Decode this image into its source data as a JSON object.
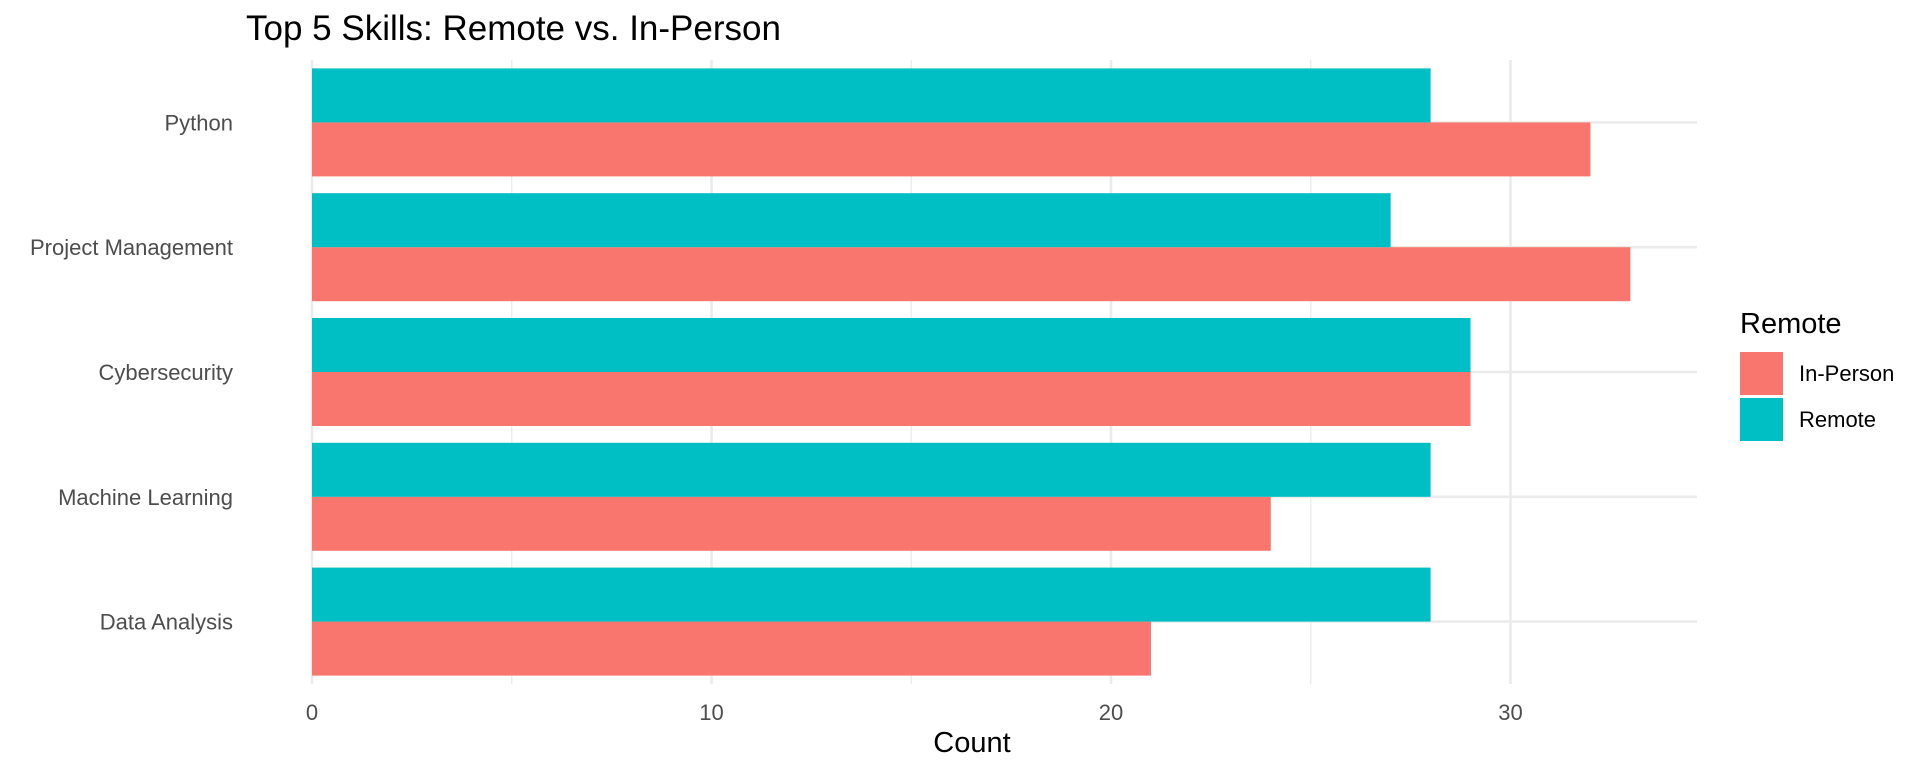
{
  "chart_data": {
    "type": "bar",
    "orientation": "horizontal",
    "title": "Top 5 Skills: Remote vs. In-Person",
    "xlabel": "Count",
    "ylabel": "",
    "categories": [
      "Data Analysis",
      "Machine Learning",
      "Cybersecurity",
      "Project Management",
      "Python"
    ],
    "series": [
      {
        "name": "In-Person",
        "color": "#f8766d",
        "values": [
          21,
          24,
          29,
          33,
          32
        ]
      },
      {
        "name": "Remote",
        "color": "#00bfc4",
        "values": [
          28,
          28,
          29,
          27,
          28
        ]
      }
    ],
    "xlim": [
      0,
      34.7
    ],
    "xticks": [
      0,
      10,
      20,
      30
    ],
    "grid": true,
    "legend": {
      "title": "Remote",
      "position": "right"
    }
  }
}
